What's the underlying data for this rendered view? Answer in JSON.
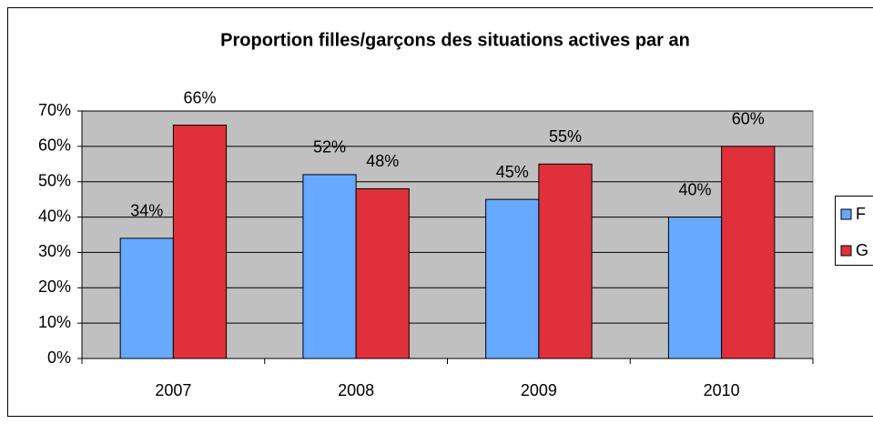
{
  "chart_data": {
    "type": "bar",
    "title": "Proportion filles/garçons des situations actives par an",
    "categories": [
      "2007",
      "2008",
      "2009",
      "2010"
    ],
    "series": [
      {
        "name": "F",
        "color": "#66a9ff",
        "values": [
          34,
          52,
          45,
          40
        ],
        "value_labels": [
          "34%",
          "52%",
          "45%",
          "40%"
        ]
      },
      {
        "name": "G",
        "color": "#e0303a",
        "values": [
          66,
          48,
          55,
          60
        ],
        "value_labels": [
          "66%",
          "48%",
          "55%",
          "60%"
        ]
      }
    ],
    "ylim": [
      0,
      70
    ],
    "yticks": [
      {
        "value": 0,
        "label": "0%"
      },
      {
        "value": 10,
        "label": "10%"
      },
      {
        "value": 20,
        "label": "20%"
      },
      {
        "value": 30,
        "label": "30%"
      },
      {
        "value": 40,
        "label": "40%"
      },
      {
        "value": 50,
        "label": "50%"
      },
      {
        "value": 60,
        "label": "60%"
      },
      {
        "value": 70,
        "label": "70%"
      }
    ],
    "grid": true,
    "legend": "right",
    "plot_background": "#c0c0c0"
  }
}
